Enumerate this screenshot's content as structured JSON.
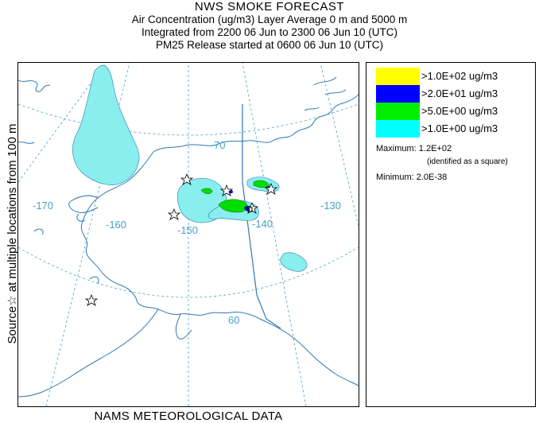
{
  "header": {
    "title": "NWS SMOKE FORECAST",
    "line1": "Air Concentration (ug/m3) Layer Average    0 m and  5000 m",
    "line2": "Integrated from 2200 06 Jun to 2300 06 Jun 10 (UTC)",
    "line3": "PM25 Release started at 0600 06 Jun 10 (UTC)"
  },
  "side_label": "Source☆   at multiple locations   from   100 m",
  "footer": "NAMS METEOROLOGICAL DATA",
  "map": {
    "grid_labels": {
      "lat_70": "70",
      "lat_60": "60",
      "lon_170": "-170",
      "lon_160": "-160",
      "lon_150": "-150",
      "lon_140": "-140",
      "lon_130": "-130"
    },
    "colors": {
      "coast": "#2f79b5",
      "grid": "#4aa0c8",
      "border": "#2f79b5",
      "source_marker": "#000000"
    }
  },
  "legend": {
    "items": [
      {
        "label": ">1.0E+02 ug/m3",
        "color": "#ffff00"
      },
      {
        "label": ">2.0E+01 ug/m3",
        "color": "#0000ff"
      },
      {
        "label": ">5.0E+00 ug/m3",
        "color": "#00ee00"
      },
      {
        "label": ">1.0E+00 ug/m3",
        "color": "#00ffff"
      }
    ],
    "maximum": "Maximum: 1.2E+02",
    "maximum_note": "(identified as a square)",
    "minimum": "Minimum: 2.0E-38"
  }
}
